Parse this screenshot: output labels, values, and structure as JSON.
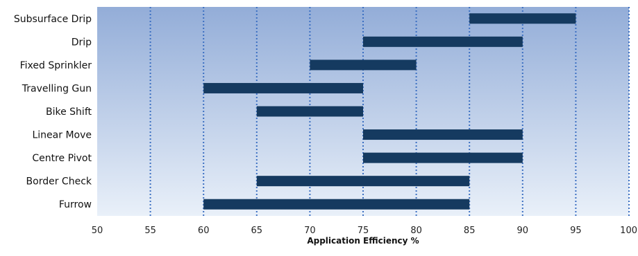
{
  "chart_data": {
    "type": "bar",
    "orientation": "horizontal",
    "style": "floating-range",
    "categories": [
      "Subsurface Drip",
      "Drip",
      "Fixed Sprinkler",
      "Travelling Gun",
      "Bike Shift",
      "Linear Move",
      "Centre Pivot",
      "Border Check",
      "Furrow"
    ],
    "ranges": [
      [
        85,
        95
      ],
      [
        75,
        90
      ],
      [
        70,
        80
      ],
      [
        60,
        75
      ],
      [
        65,
        75
      ],
      [
        75,
        90
      ],
      [
        75,
        90
      ],
      [
        65,
        85
      ],
      [
        60,
        85
      ]
    ],
    "xlabel": "Application Efficiency %",
    "ylabel": "",
    "xlim": [
      50,
      100
    ],
    "xticks": [
      50,
      55,
      60,
      65,
      70,
      75,
      80,
      85,
      90,
      95,
      100
    ],
    "xtick_labels": [
      "50",
      "55",
      "60",
      "65",
      "70",
      "75",
      "80",
      "85",
      "90",
      "95",
      "100"
    ],
    "grid": "vertical dotted",
    "legend": "none",
    "colors": {
      "bar": "#153a60",
      "plot_bg_top": "#93add8",
      "plot_bg_bottom": "#e9f0f9",
      "grid": "#3b6fc2"
    }
  }
}
